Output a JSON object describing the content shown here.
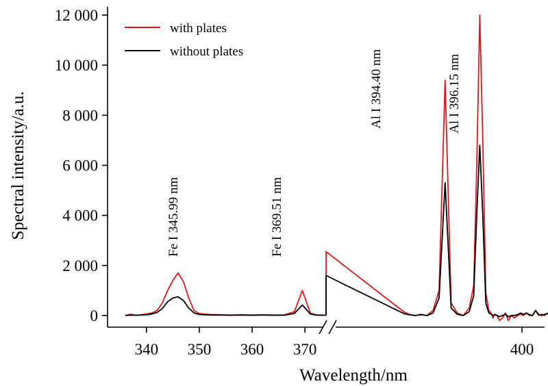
{
  "chart_data": {
    "type": "line",
    "title": "",
    "xlabel": "Wavelength/nm",
    "ylabel": "Spectral intensity/a.u.",
    "ylim": [
      0,
      12000
    ],
    "y_ticks": [
      0,
      2000,
      4000,
      6000,
      8000,
      10000,
      12000
    ],
    "y_tick_labels": [
      "0",
      "2 000",
      "4 000",
      "6 000",
      "8 000",
      "10 000",
      "12 000"
    ],
    "x_axis_break": {
      "from": 374,
      "to": 384
    },
    "x_ticks": [
      340,
      350,
      360,
      370,
      400
    ],
    "x_tick_labels": [
      "340",
      "350",
      "360",
      "370",
      "400"
    ],
    "grid": false,
    "legend_position": "top-left",
    "legend": [
      "with plates",
      "without plates"
    ],
    "annotations": [
      {
        "text": "Fe I 345.99 nm",
        "x": 346.0
      },
      {
        "text": "Fe I 369.51 nm",
        "x": 369.5
      },
      {
        "text": "Al I 394.40 nm",
        "x": 394.4
      },
      {
        "text": "Al I 396.15 nm",
        "x": 396.15
      }
    ],
    "series": [
      {
        "name": "with plates",
        "color": "#d7191c",
        "x": [
          336,
          337,
          338,
          339,
          340,
          341,
          342,
          343,
          344,
          345,
          345.99,
          347,
          348,
          349,
          350,
          352,
          354,
          356,
          358,
          360,
          362,
          364,
          366,
          368,
          369.51,
          371,
          372,
          373,
          374,
          374,
          384.3,
          385,
          385.8,
          386.6,
          387.4,
          388.2,
          389,
          389.8,
          390.6,
          391.4,
          392.2,
          393,
          393.6,
          394,
          394.4,
          394.8,
          395.2,
          395.6,
          395.9,
          396.15,
          396.4,
          396.7,
          397,
          397.4,
          397.8,
          398.2,
          398.6,
          399,
          399.4,
          399.8,
          400.2,
          400.6,
          401,
          401.4,
          401.8,
          402.2,
          402.6,
          403,
          403.4,
          403.8
        ],
        "y": [
          0,
          50,
          10,
          30,
          60,
          100,
          200,
          500,
          1000,
          1400,
          1700,
          1350,
          700,
          200,
          80,
          40,
          30,
          20,
          30,
          20,
          30,
          20,
          20,
          150,
          1000,
          100,
          30,
          20,
          10,
          2550,
          150,
          50,
          0,
          50,
          0,
          200,
          1000,
          9400,
          500,
          100,
          0,
          300,
          1200,
          6000,
          12000,
          7000,
          900,
          200,
          100,
          -100,
          50,
          0,
          -200,
          -100,
          100,
          -200,
          0,
          -100,
          0,
          50,
          0,
          100,
          0,
          0,
          200,
          0,
          50,
          0,
          100,
          0
        ],
        "x_note": "values after the axis break are placed on a compressed scale ending at 400"
      },
      {
        "name": "without plates",
        "color": "#000000",
        "x": [
          336,
          337,
          338,
          339,
          340,
          341,
          342,
          343,
          344,
          345,
          345.99,
          347,
          348,
          349,
          350,
          352,
          354,
          356,
          358,
          360,
          362,
          364,
          366,
          368,
          369.51,
          371,
          372,
          373,
          374,
          374,
          384.3,
          385,
          385.8,
          386.6,
          387.4,
          388.2,
          389,
          389.8,
          390.6,
          391.4,
          392.2,
          393,
          393.6,
          394,
          394.4,
          394.8,
          395.2,
          395.6,
          395.9,
          396.15,
          396.4,
          396.7,
          397,
          397.4,
          397.8,
          398.2,
          398.6,
          399,
          399.4,
          399.8,
          400.2,
          400.6,
          401,
          401.4,
          401.8,
          402.2,
          402.6,
          403,
          403.4,
          403.8
        ],
        "y": [
          0,
          20,
          10,
          20,
          30,
          60,
          120,
          280,
          550,
          700,
          750,
          600,
          300,
          100,
          40,
          20,
          20,
          10,
          20,
          10,
          20,
          10,
          10,
          80,
          420,
          60,
          20,
          10,
          10,
          1600,
          80,
          30,
          0,
          30,
          0,
          100,
          700,
          5300,
          300,
          50,
          0,
          150,
          800,
          4000,
          6800,
          4000,
          500,
          100,
          60,
          0,
          40,
          0,
          -50,
          0,
          50,
          -50,
          0,
          0,
          30,
          100,
          50,
          100,
          30,
          0,
          200,
          50,
          0,
          50,
          80,
          100
        ]
      }
    ]
  }
}
